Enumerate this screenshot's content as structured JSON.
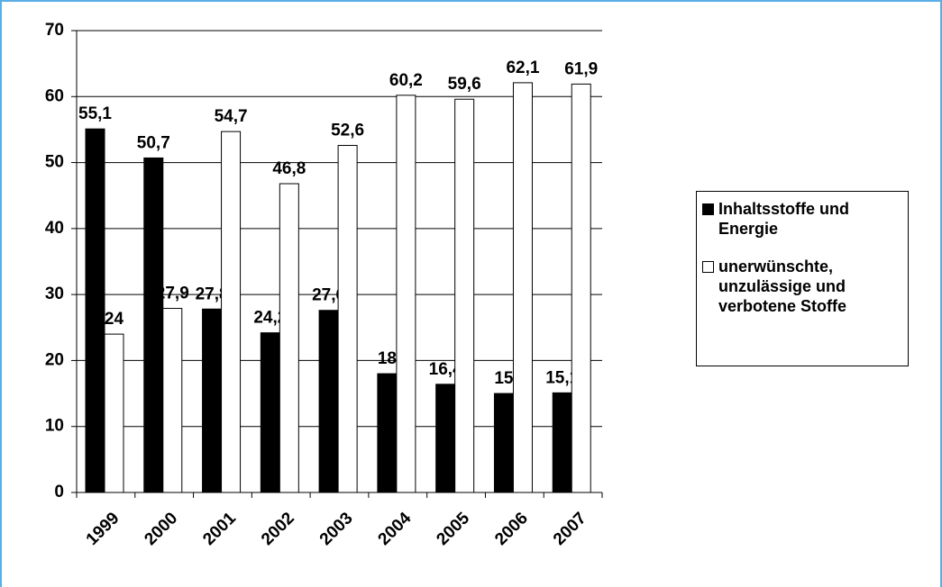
{
  "chart_data": {
    "type": "bar",
    "categories": [
      "1999",
      "2000",
      "2001",
      "2002",
      "2003",
      "2004",
      "2005",
      "2006",
      "2007"
    ],
    "series": [
      {
        "name": "Inhaltsstoffe und Energie",
        "color": "#000000",
        "values": [
          55.1,
          50.7,
          27.8,
          24.2,
          27.6,
          18,
          16.4,
          15,
          15.1
        ],
        "value_labels": [
          "55,1",
          "50,7",
          "27,8",
          "24,2",
          "27,6",
          "18",
          "16,4",
          "15",
          "15,1"
        ]
      },
      {
        "name": "unerwünschte, unzulässige und verbotene Stoffe",
        "color": "#ffffff",
        "values": [
          24,
          27.9,
          54.7,
          46.8,
          52.6,
          60.2,
          59.6,
          62.1,
          61.9
        ],
        "value_labels": [
          "24",
          "27,9",
          "54,7",
          "46,8",
          "52,6",
          "60,2",
          "59,6",
          "62,1",
          "61,9"
        ]
      }
    ],
    "ylim": [
      0,
      70
    ],
    "yticks": [
      0,
      10,
      20,
      30,
      40,
      50,
      60,
      70
    ],
    "grid": true,
    "legend": "right"
  }
}
